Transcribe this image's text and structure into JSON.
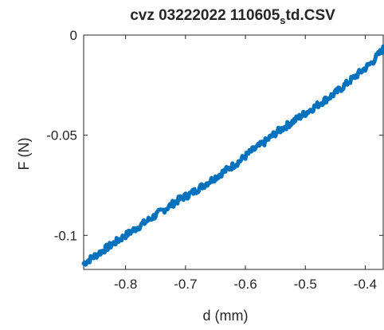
{
  "chart_data": {
    "type": "line",
    "title": "cvz 03222022 110605",
    "title_subscript": "s",
    "title_suffix": "td.CSV",
    "xlabel": "d (mm)",
    "ylabel": "F (N)",
    "xlim": [
      -0.87,
      -0.37
    ],
    "ylim": [
      -0.117,
      0.0
    ],
    "x_ticks": [
      -0.8,
      -0.7,
      -0.6,
      -0.5,
      -0.4
    ],
    "x_tick_labels": [
      "-0.8",
      "-0.7",
      "-0.6",
      "-0.5",
      "-0.4"
    ],
    "y_ticks": [
      0,
      -0.05,
      -0.1
    ],
    "y_tick_labels": [
      "0",
      "-0.05",
      "-0.1"
    ],
    "grid": false,
    "line_color": "#0072BD",
    "series": [
      {
        "x": [
          -0.87,
          -0.85,
          -0.83,
          -0.81,
          -0.79,
          -0.77,
          -0.75,
          -0.73,
          -0.71,
          -0.69,
          -0.67,
          -0.65,
          -0.63,
          -0.61,
          -0.59,
          -0.57,
          -0.55,
          -0.53,
          -0.51,
          -0.49,
          -0.47,
          -0.45,
          -0.43,
          -0.41,
          -0.39,
          -0.37
        ],
        "values": [
          -0.114,
          -0.11,
          -0.106,
          -0.102,
          -0.098,
          -0.094,
          -0.09,
          -0.086,
          -0.082,
          -0.079,
          -0.075,
          -0.071,
          -0.067,
          -0.063,
          -0.058,
          -0.054,
          -0.049,
          -0.045,
          -0.041,
          -0.037,
          -0.033,
          -0.029,
          -0.024,
          -0.019,
          -0.014,
          -0.007
        ]
      }
    ]
  }
}
